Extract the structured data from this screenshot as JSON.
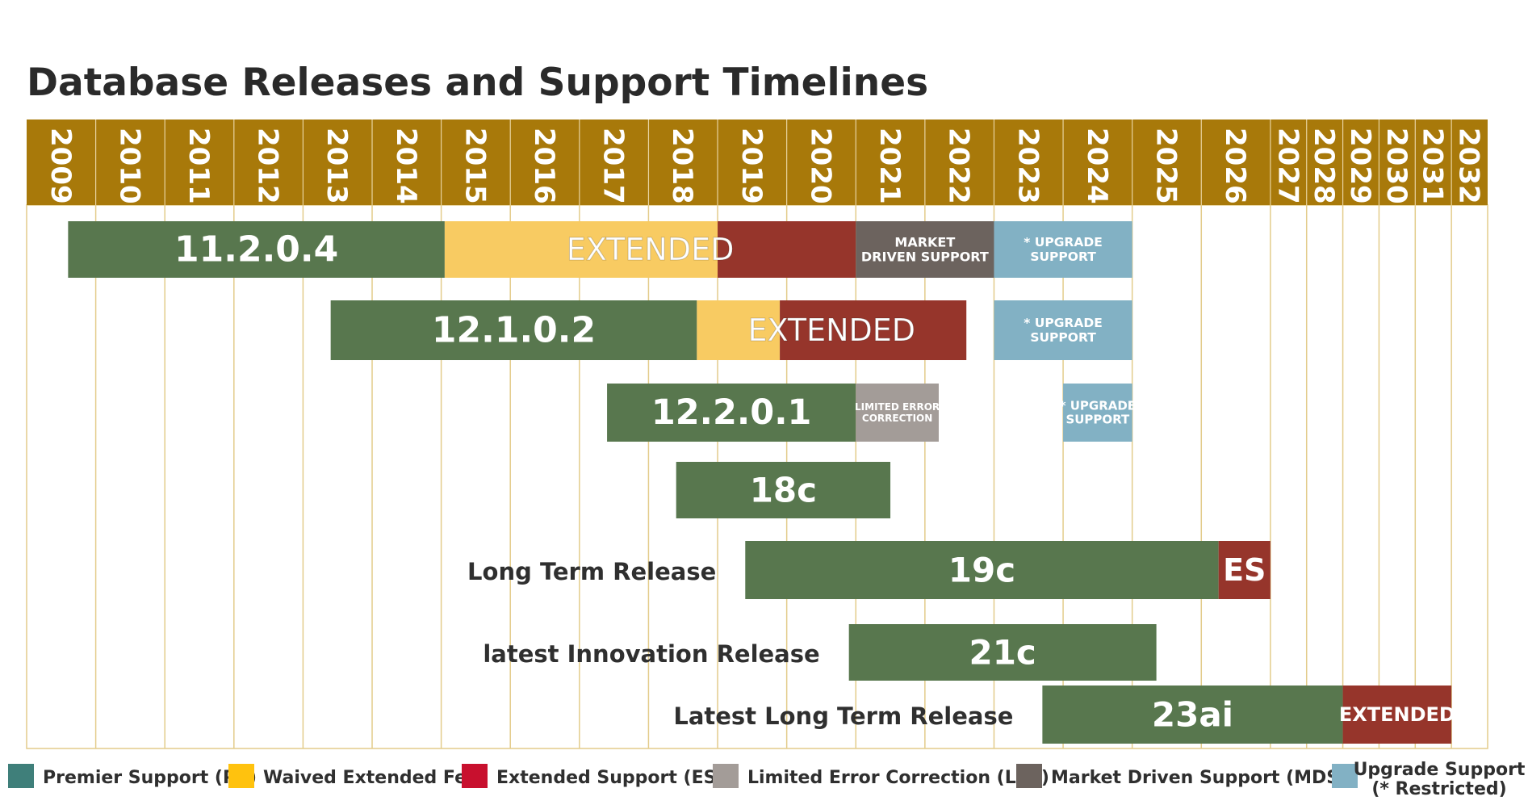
{
  "chart_data": {
    "type": "gantt",
    "title": "Database Releases and Support Timelines",
    "years": [
      "2009",
      "2010",
      "2011",
      "2012",
      "2013",
      "2014",
      "2015",
      "2016",
      "2017",
      "2018",
      "2019",
      "2020",
      "2021",
      "2022",
      "2023",
      "2024",
      "2025",
      "2026",
      "2027",
      "2028",
      "2029",
      "2030",
      "2031",
      "2032"
    ],
    "colors": {
      "header": "#A8790A",
      "grid": "#E3CC8B",
      "PS": "#58774E",
      "WEF": "#F8CB62",
      "ES": "#96352B",
      "LEC": "#A39C98",
      "MDS": "#6C635E",
      "US": "#82B1C4"
    },
    "releases": [
      {
        "name": "11.2.0.4",
        "row_label": "",
        "segments": [
          {
            "type": "PS",
            "start": 2009.6,
            "end": 2015.05,
            "label": "11.2.0.4"
          },
          {
            "type": "WEF",
            "start": 2015.05,
            "end": 2019.0,
            "label": ""
          },
          {
            "type": "ES",
            "start": 2019.0,
            "end": 2021.0,
            "label": ""
          },
          {
            "type": "MDS",
            "start": 2021.0,
            "end": 2023.0,
            "label": "MARKET\nDRIVEN SUPPORT"
          },
          {
            "type": "US",
            "start": 2023.0,
            "end": 2025.0,
            "label": "* UPGRADE\nSUPPORT"
          }
        ],
        "overlay": {
          "text": "EXTENDED",
          "start": 2015.05,
          "end": 2021.0
        }
      },
      {
        "name": "12.1.0.2",
        "row_label": "",
        "segments": [
          {
            "type": "PS",
            "start": 2013.4,
            "end": 2018.7,
            "label": "12.1.0.2"
          },
          {
            "type": "WEF",
            "start": 2018.7,
            "end": 2019.9,
            "label": ""
          },
          {
            "type": "ES",
            "start": 2019.9,
            "end": 2022.6,
            "label": ""
          },
          {
            "type": "US",
            "start": 2023.0,
            "end": 2025.0,
            "label": "* UPGRADE\nSUPPORT"
          }
        ],
        "overlay": {
          "text": "EXTENDED",
          "start": 2018.7,
          "end": 2022.6
        }
      },
      {
        "name": "12.2.0.1",
        "row_label": "",
        "segments": [
          {
            "type": "PS",
            "start": 2017.4,
            "end": 2021.0,
            "label": "12.2.0.1"
          },
          {
            "type": "LEC",
            "start": 2021.0,
            "end": 2022.2,
            "label": "LIMITED ERROR\nCORRECTION"
          },
          {
            "type": "US",
            "start": 2024.0,
            "end": 2025.0,
            "label": "* UPGRADE\nSUPPORT"
          }
        ]
      },
      {
        "name": "18c",
        "row_label": "",
        "segments": [
          {
            "type": "PS",
            "start": 2018.4,
            "end": 2021.5,
            "label": "18c"
          }
        ]
      },
      {
        "name": "19c",
        "row_label": "Long Term Release",
        "segments": [
          {
            "type": "PS",
            "start": 2019.4,
            "end": 2026.25,
            "label": "19c"
          },
          {
            "type": "ES",
            "start": 2026.25,
            "end": 2027.0,
            "label": "ES"
          }
        ]
      },
      {
        "name": "21c",
        "row_label": "latest Innovation Release",
        "segments": [
          {
            "type": "PS",
            "start": 2020.9,
            "end": 2025.35,
            "label": "21c"
          }
        ]
      },
      {
        "name": "23ai",
        "row_label": "Latest Long Term Release",
        "segments": [
          {
            "type": "PS",
            "start": 2023.7,
            "end": 2029.0,
            "label": "23ai"
          },
          {
            "type": "ES",
            "start": 2029.0,
            "end": 2032.0,
            "label": "EXTENDED"
          }
        ]
      }
    ],
    "legend": [
      {
        "key": "PS",
        "color": "#3F7F7A",
        "label": "Premier Support (PS)"
      },
      {
        "key": "WEF",
        "color": "#FFC20E",
        "label": "Waived Extended Fee"
      },
      {
        "key": "ES",
        "color": "#C8102E",
        "label": "Extended Support (ES)"
      },
      {
        "key": "LEC",
        "color": "#A39C98",
        "label": "Limited Error Correction (LEC)"
      },
      {
        "key": "MDS",
        "color": "#6C635E",
        "label": "Market Driven Support (MDS)"
      },
      {
        "key": "US",
        "color": "#82B1C4",
        "label": "Upgrade Support\n(* Restricted)"
      }
    ]
  }
}
